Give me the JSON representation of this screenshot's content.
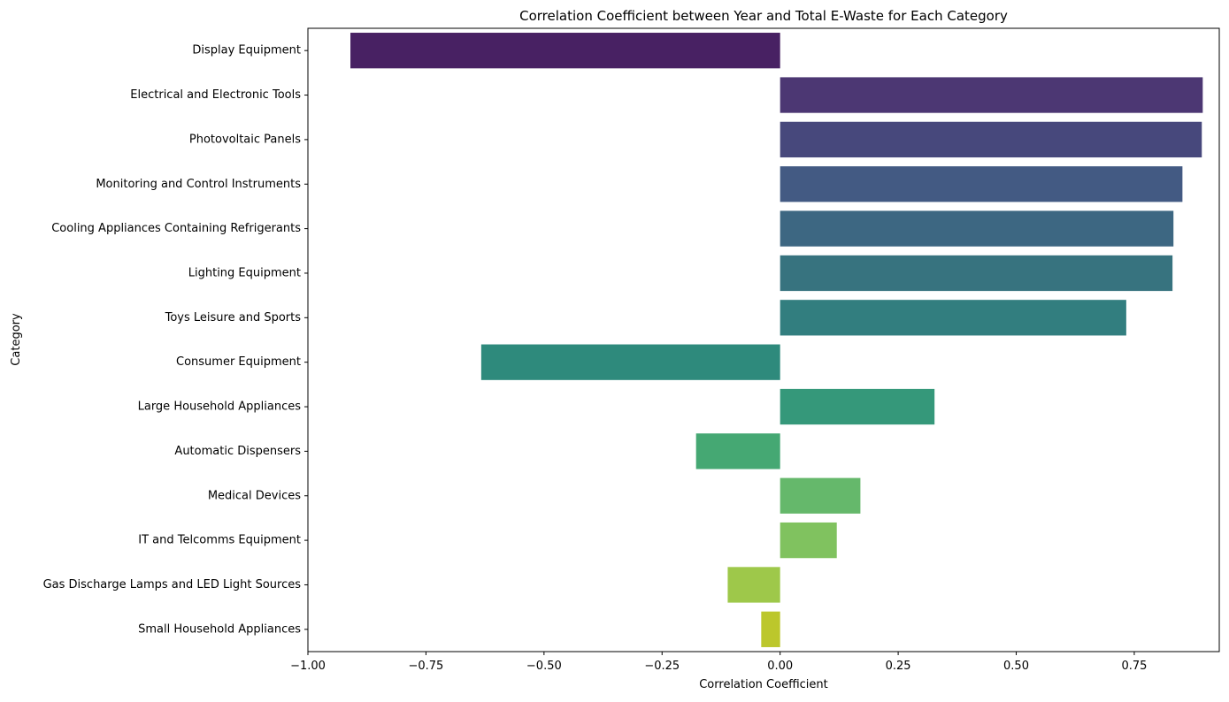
{
  "chart_data": {
    "type": "bar",
    "orientation": "horizontal",
    "title": "Correlation Coefficient between Year and Total E-Waste for Each Category",
    "xlabel": "Correlation Coefficient",
    "ylabel": "Category",
    "xlim": [
      -1.0,
      0.93
    ],
    "x_ticks": [
      -1.0,
      -0.75,
      -0.5,
      -0.25,
      0.0,
      0.25,
      0.5,
      0.75
    ],
    "x_tick_labels": [
      "−1.00",
      "−0.75",
      "−0.50",
      "−0.25",
      "0.00",
      "0.25",
      "0.50",
      "0.75"
    ],
    "grid": false,
    "legend": "none",
    "palette": "viridis",
    "categories": [
      "Display Equipment",
      "Electrical and Electronic Tools",
      "Photovoltaic Panels",
      "Monitoring and Control Instruments",
      "Cooling Appliances Containing Refrigerants",
      "Lighting Equipment",
      "Toys Leisure and Sports",
      "Consumer Equipment",
      "Large Household Appliances",
      "Automatic Dispensers",
      "Medical Devices",
      "IT and Telcomms Equipment",
      "Gas Discharge Lamps and LED Light Sources",
      "Small Household Appliances"
    ],
    "values": [
      -0.91,
      0.895,
      0.893,
      0.852,
      0.833,
      0.831,
      0.733,
      -0.633,
      0.327,
      -0.178,
      0.17,
      0.12,
      -0.111,
      -0.04
    ],
    "colors": [
      "#482163",
      "#4c3773",
      "#47487c",
      "#435a83",
      "#3d6782",
      "#37737f",
      "#327e7f",
      "#2e8a7c",
      "#35987a",
      "#45a873",
      "#65b86b",
      "#80c25f",
      "#9ec84a",
      "#bcc72c"
    ]
  }
}
